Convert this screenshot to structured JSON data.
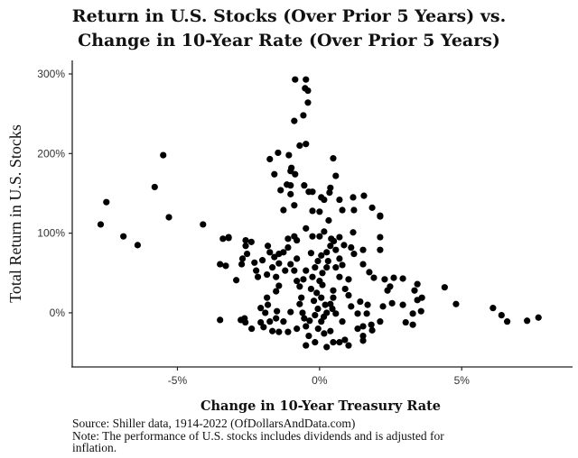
{
  "chart_data": {
    "type": "scatter",
    "title_lines": [
      "Return in U.S. Stocks (Over Prior 5 Years) vs.",
      "Change in 10-Year Rate (Over Prior 5 Years)"
    ],
    "xlabel": "Change in 10-Year Treasury Rate",
    "ylabel": "Total Return in U.S. Stocks",
    "x_unit": "%",
    "y_unit": "%",
    "xlim": [
      -8.7,
      8.9
    ],
    "ylim": [
      -68,
      317
    ],
    "x_ticks": [
      -5,
      0,
      5
    ],
    "x_tick_labels": [
      "-5%",
      "0%",
      "5%"
    ],
    "y_ticks": [
      0,
      100,
      200,
      300
    ],
    "y_tick_labels": [
      "0%",
      "100%",
      "200%",
      "300%"
    ],
    "grid": false,
    "marker_color": "#000000",
    "caption_lines": [
      "Source: Shiller data, 1914-2022 (OfDollarsAndData.com)",
      "Note: The performance of U.S. stocks includes dividends and is adjusted for",
      "inflation."
    ],
    "points": [
      [
        -7.7,
        111
      ],
      [
        -7.5,
        139
      ],
      [
        -6.9,
        96
      ],
      [
        -6.4,
        85
      ],
      [
        -5.8,
        158
      ],
      [
        -5.5,
        198
      ],
      [
        -5.3,
        120
      ],
      [
        -4.1,
        111
      ],
      [
        -3.5,
        -9
      ],
      [
        -3.5,
        61
      ],
      [
        -3.4,
        93
      ],
      [
        -3.2,
        94
      ],
      [
        4.4,
        32
      ],
      [
        4.8,
        11
      ],
      [
        6.1,
        6
      ],
      [
        6.4,
        -3
      ],
      [
        6.6,
        -11
      ],
      [
        7.3,
        -10
      ],
      [
        7.7,
        -6
      ],
      [
        -0.86,
        293
      ],
      [
        -0.48,
        293
      ],
      [
        -0.51,
        282
      ],
      [
        -0.41,
        279
      ],
      [
        -0.41,
        264
      ],
      [
        -0.57,
        248
      ],
      [
        -0.89,
        241
      ],
      [
        -0.48,
        212
      ],
      [
        -0.7,
        210
      ],
      [
        -1.46,
        201
      ],
      [
        -1.08,
        198
      ],
      [
        -1.75,
        193
      ],
      [
        0.48,
        194
      ],
      [
        -1.59,
        174
      ],
      [
        -0.99,
        182
      ],
      [
        -1.02,
        178
      ],
      [
        -0.86,
        174
      ],
      [
        0.57,
        172
      ],
      [
        -1.15,
        161
      ],
      [
        -1.02,
        160
      ],
      [
        -0.54,
        160
      ],
      [
        -1.37,
        154
      ],
      [
        -1.02,
        149
      ],
      [
        -0.38,
        152
      ],
      [
        -0.25,
        152
      ],
      [
        0.38,
        157
      ],
      [
        0.35,
        151
      ],
      [
        0.06,
        145
      ],
      [
        0.16,
        142
      ],
      [
        0.7,
        142
      ],
      [
        1.18,
        145
      ],
      [
        1.56,
        147
      ],
      [
        1.85,
        132
      ],
      [
        0.8,
        129
      ],
      [
        1.21,
        129
      ],
      [
        2.13,
        122
      ],
      [
        -0.25,
        128
      ],
      [
        0,
        127
      ],
      [
        -0.89,
        135
      ],
      [
        -1.27,
        129
      ],
      [
        -3.2,
        95
      ],
      [
        -2.6,
        91
      ],
      [
        -2.4,
        89
      ],
      [
        -2.6,
        84
      ],
      [
        -2.55,
        74
      ],
      [
        -3.3,
        59
      ],
      [
        -2.93,
        41
      ],
      [
        -2.71,
        68
      ],
      [
        -2.74,
        61
      ],
      [
        -2.29,
        63
      ],
      [
        -2.01,
        66
      ],
      [
        -1.82,
        84
      ],
      [
        -1.75,
        76
      ],
      [
        -1.59,
        70
      ],
      [
        -1.43,
        74
      ],
      [
        -1.27,
        76
      ],
      [
        -1.11,
        93
      ],
      [
        -0.89,
        96
      ],
      [
        -0.8,
        91
      ],
      [
        -1.11,
        82
      ],
      [
        -0.48,
        106
      ],
      [
        -0.25,
        96
      ],
      [
        0,
        96
      ],
      [
        0.16,
        102
      ],
      [
        0.32,
        116
      ],
      [
        0.41,
        93
      ],
      [
        0.7,
        95
      ],
      [
        0.86,
        85
      ],
      [
        1.18,
        101
      ],
      [
        1.11,
        82
      ],
      [
        1.21,
        74
      ],
      [
        1.53,
        79
      ],
      [
        2.13,
        95
      ],
      [
        2.13,
        79
      ],
      [
        2.13,
        121
      ],
      [
        1.53,
        61
      ],
      [
        1.75,
        51
      ],
      [
        1.91,
        44
      ],
      [
        2.29,
        42
      ],
      [
        2.61,
        44
      ],
      [
        2.93,
        43
      ],
      [
        2.48,
        33
      ],
      [
        2.39,
        28
      ],
      [
        3.44,
        36
      ],
      [
        3.34,
        28
      ],
      [
        3.6,
        19
      ],
      [
        2.93,
        10
      ],
      [
        2.55,
        12
      ],
      [
        2.23,
        8
      ],
      [
        3.44,
        16
      ],
      [
        3.28,
        -1
      ],
      [
        3.57,
        2
      ],
      [
        3.03,
        -12
      ],
      [
        3.28,
        -15
      ],
      [
        2.13,
        -11
      ],
      [
        1.82,
        -15
      ],
      [
        1.85,
        -22
      ],
      [
        1.53,
        -17
      ],
      [
        1.53,
        -29
      ],
      [
        1.34,
        -20
      ],
      [
        1.02,
        22
      ],
      [
        1.11,
        8
      ],
      [
        1.43,
        14
      ],
      [
        1.69,
        10
      ],
      [
        1.66,
        -1
      ],
      [
        1.34,
        -1
      ],
      [
        0.8,
        -11
      ],
      [
        0.57,
        -1
      ],
      [
        0.48,
        28
      ],
      [
        0.7,
        45
      ],
      [
        1.02,
        42
      ],
      [
        0.48,
        19
      ],
      [
        0.38,
        11
      ],
      [
        0.06,
        19
      ],
      [
        -0.06,
        5
      ],
      [
        -0.16,
        -3
      ],
      [
        0.06,
        -11
      ],
      [
        0.38,
        -23
      ],
      [
        0.16,
        -26
      ],
      [
        0.48,
        -37
      ],
      [
        0.25,
        -43
      ],
      [
        0.7,
        -37
      ],
      [
        0.89,
        -34
      ],
      [
        1.02,
        -41
      ],
      [
        1.53,
        -35
      ],
      [
        -0.16,
        -37
      ],
      [
        -0.48,
        -41
      ],
      [
        -0.38,
        -29
      ],
      [
        -0.48,
        -17
      ],
      [
        -0.54,
        -7
      ],
      [
        -0.7,
        11
      ],
      [
        -0.64,
        19
      ],
      [
        -0.7,
        33
      ],
      [
        -0.57,
        42
      ],
      [
        -0.8,
        40
      ],
      [
        -0.89,
        53
      ],
      [
        -0.48,
        53
      ],
      [
        -0.25,
        45
      ],
      [
        -0.16,
        57
      ],
      [
        -0.06,
        65
      ],
      [
        0.06,
        72
      ],
      [
        0.25,
        76
      ],
      [
        0.38,
        84
      ],
      [
        0.57,
        79
      ],
      [
        0.7,
        68
      ],
      [
        0.57,
        57
      ],
      [
        0.25,
        57
      ],
      [
        -0.8,
        68
      ],
      [
        -1.02,
        61
      ],
      [
        -1.21,
        53
      ],
      [
        -1.53,
        45
      ],
      [
        -1.43,
        34
      ],
      [
        -1.53,
        27
      ],
      [
        -1.85,
        19
      ],
      [
        -1.82,
        10
      ],
      [
        -2.07,
        6
      ],
      [
        -1.91,
        0
      ],
      [
        -1.5,
        2
      ],
      [
        -1.02,
        1
      ],
      [
        -1.53,
        -7
      ],
      [
        -1.27,
        -11
      ],
      [
        -1.75,
        -11
      ],
      [
        -2.07,
        -12
      ],
      [
        -1.97,
        -18
      ],
      [
        -1.66,
        -23
      ],
      [
        -1.43,
        -24
      ],
      [
        -2.39,
        -20
      ],
      [
        -2.64,
        -7
      ],
      [
        -2.77,
        -9
      ],
      [
        -2.61,
        -12
      ],
      [
        -1.11,
        -24
      ],
      [
        -0.8,
        -20
      ],
      [
        -2.17,
        45
      ],
      [
        -1.85,
        48
      ],
      [
        -2.23,
        53
      ],
      [
        -1.66,
        57
      ],
      [
        -1.43,
        62
      ],
      [
        -0.3,
        30
      ],
      [
        -0.1,
        25
      ],
      [
        0.1,
        35
      ],
      [
        0.2,
        10
      ],
      [
        -0.2,
        15
      ],
      [
        0.0,
        40
      ],
      [
        0.1,
        50
      ],
      [
        -0.3,
        75
      ],
      [
        0.3,
        65
      ],
      [
        0.5,
        90
      ],
      [
        0.8,
        60
      ],
      [
        0.9,
        30
      ],
      [
        -0.05,
        -20
      ],
      [
        0.15,
        -5
      ],
      [
        -0.35,
        -10
      ],
      [
        0.25,
        0
      ],
      [
        0.45,
        5
      ],
      [
        -0.6,
        0
      ]
    ]
  }
}
